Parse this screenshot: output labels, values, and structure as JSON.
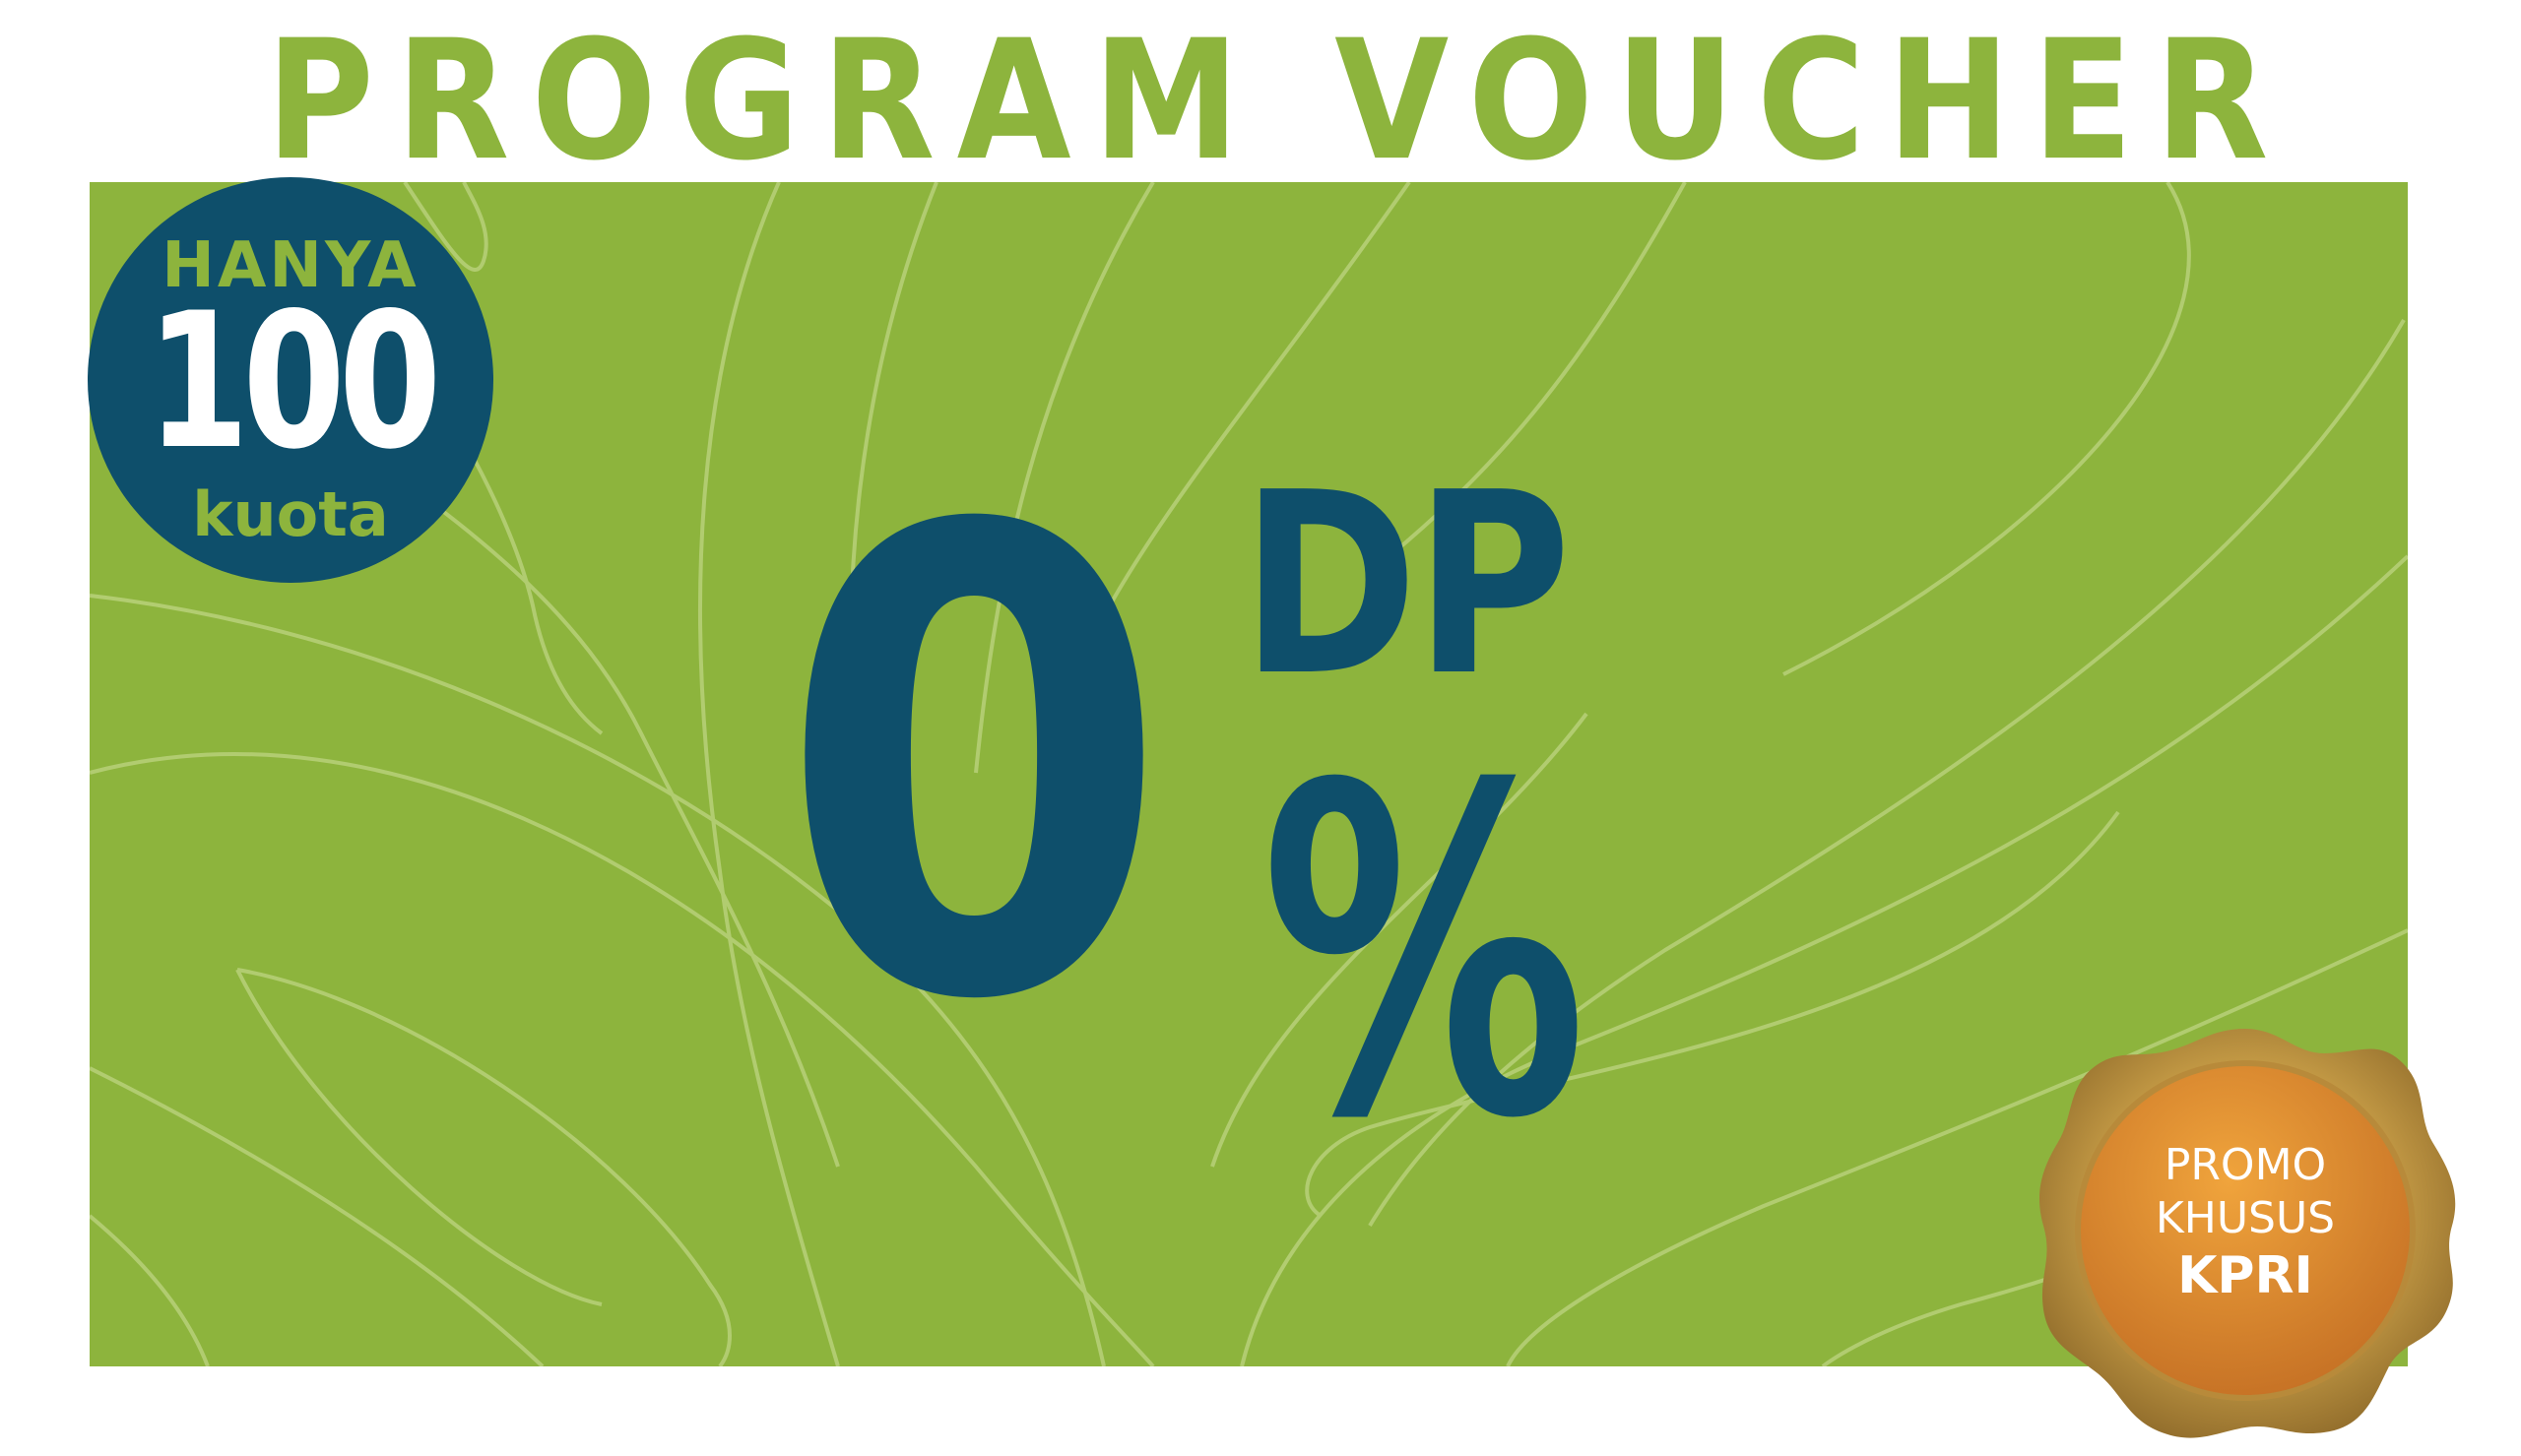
{
  "title": "PROGRAM VOUCHER",
  "quota_badge": {
    "top_text": "HANYA",
    "number": "100",
    "bottom_text": "kuota"
  },
  "offer": {
    "value": "0",
    "label": "DP",
    "unit": "%"
  },
  "promo_seal": {
    "line1": "PROMO",
    "line2": "KHUSUS",
    "line3": "KPRI"
  },
  "colors": {
    "green": "#8db43d",
    "navy": "#0e4f6b",
    "seal_gold": "#c9a24f",
    "seal_orange": "#e38f31",
    "pattern_line": "#b8d17a",
    "white": "#ffffff"
  }
}
